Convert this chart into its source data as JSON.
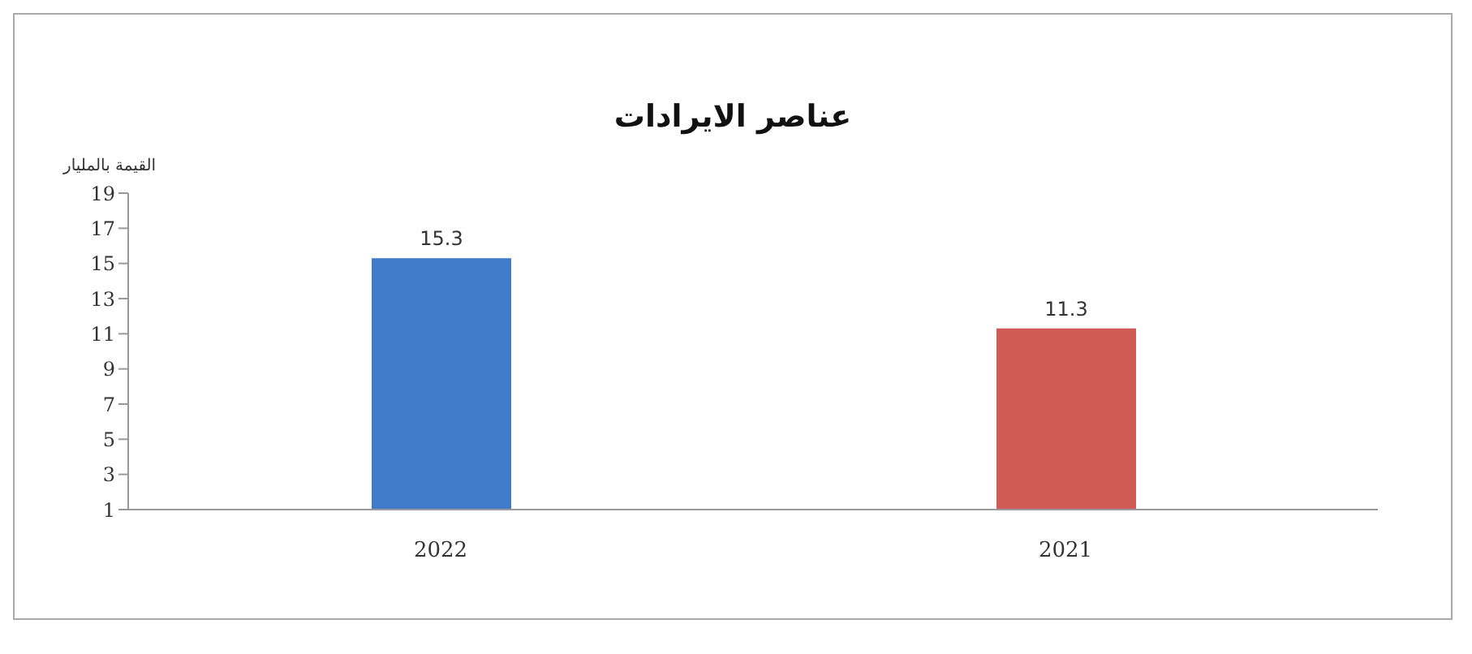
{
  "chart_data": {
    "type": "bar",
    "title": "عناصر الايرادات",
    "ylabel": "القيمة بالمليار",
    "categories": [
      "2022",
      "2021"
    ],
    "values": [
      15.3,
      11.3
    ],
    "colors": [
      "#3f7bc8",
      "#d05a55"
    ],
    "ylim": [
      1,
      19
    ],
    "yticks": [
      1,
      3,
      5,
      7,
      9,
      11,
      13,
      15,
      17,
      19
    ],
    "data_labels": true,
    "grid": false,
    "legend": false
  }
}
